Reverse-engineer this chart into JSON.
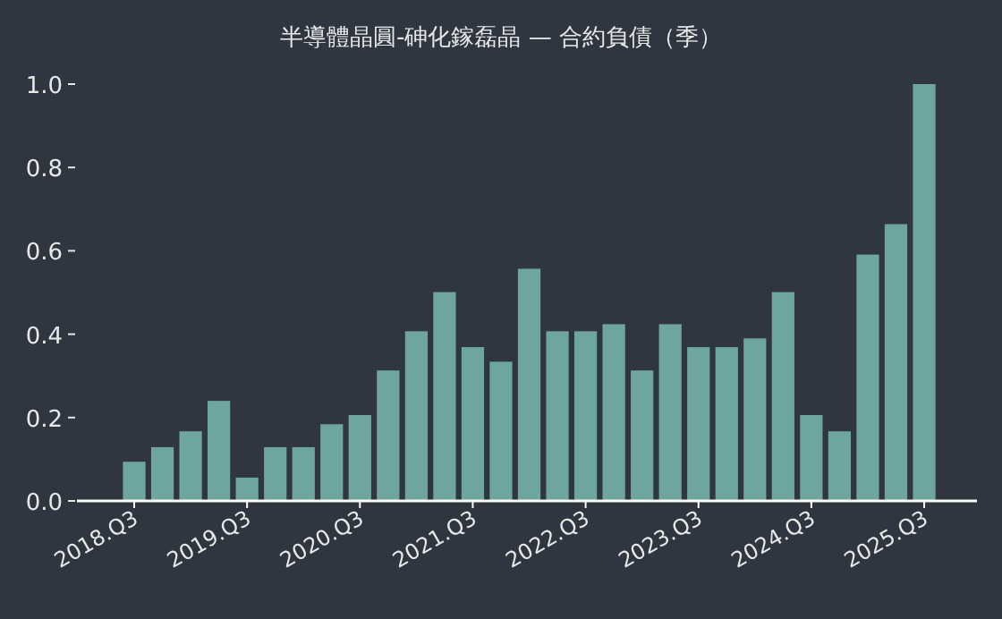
{
  "chart_data": {
    "type": "bar",
    "title": "半導體晶圓-砷化鎵磊晶 — 合約負債（季）",
    "categories": [
      "2018.Q3",
      null,
      null,
      null,
      "2019.Q3",
      null,
      null,
      null,
      "2020.Q3",
      null,
      null,
      null,
      "2021.Q3",
      null,
      null,
      null,
      "2022.Q3",
      null,
      null,
      null,
      "2023.Q3",
      null,
      null,
      null,
      "2024.Q3",
      null,
      null,
      null,
      "2025.Q3"
    ],
    "values": [
      0.094,
      0.129,
      0.167,
      0.24,
      0.056,
      0.129,
      0.129,
      0.184,
      0.206,
      0.313,
      0.407,
      0.501,
      0.369,
      0.334,
      0.557,
      0.407,
      0.407,
      0.424,
      0.313,
      0.424,
      0.369,
      0.369,
      0.39,
      0.501,
      0.206,
      0.167,
      0.591,
      0.664,
      1.0
    ],
    "color": "#6fa59f",
    "ylim": [
      0,
      1.0
    ],
    "yticks": [
      {
        "value": 0,
        "label": "0.0"
      },
      0.2,
      0.4,
      0.6,
      0.8,
      {
        "value": 1.0,
        "label": "1.0"
      }
    ],
    "grid": false
  }
}
